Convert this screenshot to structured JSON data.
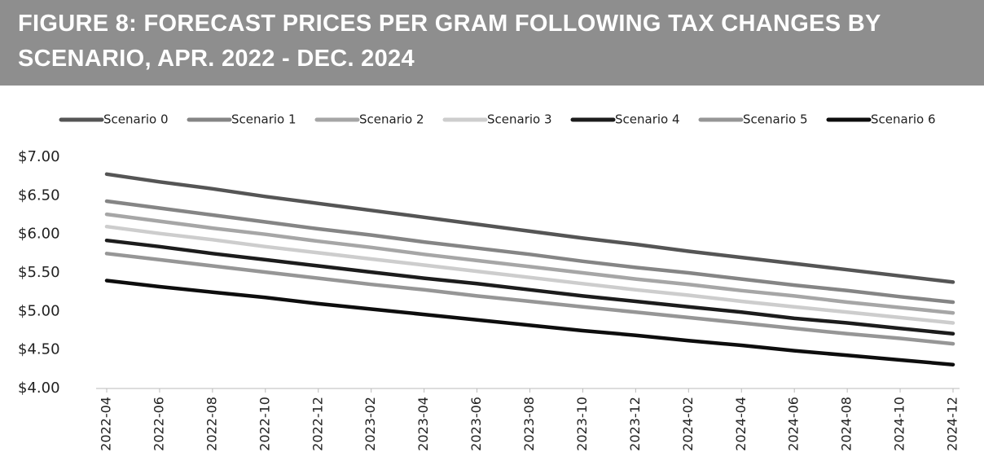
{
  "chart_data": {
    "type": "line",
    "title": "FIGURE 8: FORECAST PRICES PER GRAM FOLLOWING TAX CHANGES BY SCENARIO, APR. 2022 - DEC. 2024",
    "categories": [
      "2022-04",
      "2022-06",
      "2022-08",
      "2022-10",
      "2022-12",
      "2023-02",
      "2023-04",
      "2023-06",
      "2023-08",
      "2023-10",
      "2023-12",
      "2024-02",
      "2024-04",
      "2024-06",
      "2024-08",
      "2024-10",
      "2024-12"
    ],
    "series": [
      {
        "name": "Scenario 0",
        "color": "#555555",
        "values": [
          6.78,
          6.68,
          6.59,
          6.49,
          6.4,
          6.31,
          6.22,
          6.13,
          6.04,
          5.95,
          5.87,
          5.78,
          5.7,
          5.62,
          5.54,
          5.46,
          5.38
        ]
      },
      {
        "name": "Scenario 1",
        "color": "#858585",
        "values": [
          6.43,
          6.34,
          6.25,
          6.16,
          6.07,
          5.99,
          5.9,
          5.82,
          5.74,
          5.65,
          5.57,
          5.5,
          5.42,
          5.34,
          5.27,
          5.19,
          5.12
        ]
      },
      {
        "name": "Scenario 2",
        "color": "#a6a6a6",
        "values": [
          6.26,
          6.17,
          6.08,
          6.0,
          5.91,
          5.83,
          5.74,
          5.66,
          5.58,
          5.5,
          5.42,
          5.35,
          5.27,
          5.2,
          5.12,
          5.05,
          4.98
        ]
      },
      {
        "name": "Scenario 3",
        "color": "#cdcdcd",
        "values": [
          6.1,
          6.01,
          5.93,
          5.84,
          5.76,
          5.68,
          5.6,
          5.52,
          5.44,
          5.36,
          5.28,
          5.21,
          5.13,
          5.06,
          4.99,
          4.92,
          4.85
        ]
      },
      {
        "name": "Scenario 4",
        "color": "#1c1c1c",
        "values": [
          5.92,
          5.84,
          5.75,
          5.67,
          5.59,
          5.51,
          5.43,
          5.36,
          5.28,
          5.2,
          5.13,
          5.06,
          4.99,
          4.91,
          4.85,
          4.78,
          4.71
        ]
      },
      {
        "name": "Scenario 5",
        "color": "#969696",
        "values": [
          5.75,
          5.67,
          5.59,
          5.51,
          5.43,
          5.35,
          5.28,
          5.2,
          5.13,
          5.06,
          4.99,
          4.92,
          4.85,
          4.78,
          4.71,
          4.65,
          4.58
        ]
      },
      {
        "name": "Scenario 6",
        "color": "#0d0d0d",
        "values": [
          5.4,
          5.32,
          5.25,
          5.18,
          5.1,
          5.03,
          4.96,
          4.89,
          4.82,
          4.75,
          4.69,
          4.62,
          4.56,
          4.49,
          4.43,
          4.37,
          4.31
        ]
      }
    ],
    "ylim": [
      4,
      7
    ],
    "yticks": [
      {
        "value": 4,
        "label": "$4.00"
      },
      {
        "value": 4.5,
        "label": "$4.50"
      },
      {
        "value": 5,
        "label": "$5.00"
      },
      {
        "value": 5.5,
        "label": "$5.50"
      },
      {
        "value": 6,
        "label": "$6.00"
      },
      {
        "value": 6.5,
        "label": "$6.50"
      },
      {
        "value": 7,
        "label": "$7.00"
      }
    ],
    "grid": false,
    "legend": "top"
  }
}
